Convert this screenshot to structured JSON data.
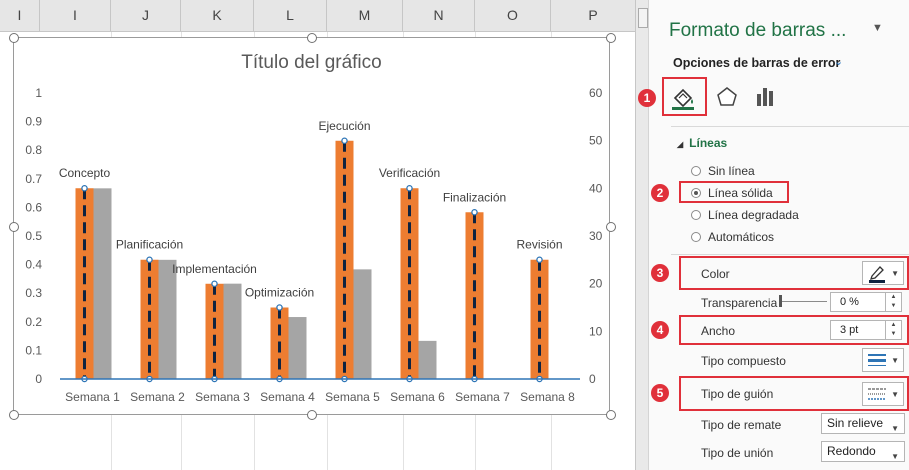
{
  "spreadsheet": {
    "columns": [
      "I",
      "J",
      "K",
      "L",
      "M",
      "N",
      "O",
      "P"
    ]
  },
  "chart_data": {
    "type": "bar",
    "title": "Título del gráfico",
    "categories": [
      "Semana 1",
      "Semana 2",
      "Semana 3",
      "Semana 4",
      "Semana 5",
      "Semana 6",
      "Semana 7",
      "Semana 8"
    ],
    "series": [
      {
        "values": [
          0.667,
          0.417,
          0.333,
          0.25,
          0.833,
          0.667,
          0.583,
          0.417
        ],
        "axis": "primary",
        "color": "#ed7d31"
      },
      {
        "values": [
          40,
          25,
          20,
          13,
          23,
          8,
          0,
          0
        ],
        "axis": "secondary",
        "color": "#a5a5a5"
      }
    ],
    "data_labels": [
      "Concepto",
      "Planificación",
      "Implementación",
      "Optimización",
      "Ejecución",
      "Verificación",
      "Finalización",
      "Revisión"
    ],
    "y_ticks": [
      "1",
      "0.9",
      "0.8",
      "0.7",
      "0.6",
      "0.5",
      "0.4",
      "0.3",
      "0.2",
      "0.1",
      "0"
    ],
    "y2_ticks": [
      "60",
      "50",
      "40",
      "30",
      "20",
      "10",
      "0"
    ],
    "ylim": [
      0,
      1
    ],
    "y2lim": [
      0,
      60
    ],
    "error_bar_color": "#0e2340",
    "baseline_color": "#2e75b6"
  },
  "pane": {
    "title": "Formato de barras ...",
    "subtitle": "Opciones de barras de error",
    "section_lines": "Líneas",
    "radio_options": [
      "Sin línea",
      "Línea sólida",
      "Línea degradada",
      "Automáticos"
    ],
    "selected_radio": "Línea sólida",
    "color_label": "Color",
    "transparency_label": "Transparencia",
    "transparency_value": "0 %",
    "width_label": "Ancho",
    "width_value": "3 pt",
    "compound_label": "Tipo compuesto",
    "dash_label": "Tipo de guión",
    "cap_label": "Tipo de remate",
    "cap_value": "Sin relieve",
    "join_label": "Tipo de unión",
    "join_value": "Redondo"
  },
  "badges": [
    "1",
    "2",
    "3",
    "4",
    "5"
  ],
  "accent_color": "#217346",
  "highlight_color": "#e0303a"
}
